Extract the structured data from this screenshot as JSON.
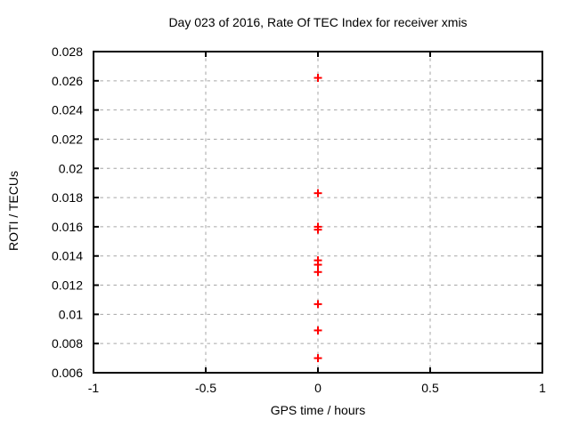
{
  "chart_data": {
    "type": "scatter",
    "title": "Day 023 of 2016, Rate Of TEC Index for receiver xmis",
    "xlabel": "GPS time / hours",
    "ylabel": "ROTI / TECUs",
    "xlim": [
      -1,
      1
    ],
    "ylim": [
      0.006,
      0.028
    ],
    "x_ticks": [
      -1,
      -0.5,
      0,
      0.5,
      1
    ],
    "x_tick_labels": [
      "-1",
      "-0.5",
      "0",
      "0.5",
      "1"
    ],
    "y_ticks": [
      0.006,
      0.008,
      0.01,
      0.012,
      0.014,
      0.016,
      0.018,
      0.02,
      0.022,
      0.024,
      0.026,
      0.028
    ],
    "y_tick_labels": [
      "0.006",
      "0.008",
      "0.01",
      "0.012",
      "0.014",
      "0.016",
      "0.018",
      "0.02",
      "0.022",
      "0.024",
      "0.026",
      "0.028"
    ],
    "grid": true,
    "legend": "none",
    "marker": "plus",
    "series": [
      {
        "name": "ROTI",
        "points": [
          {
            "x": 0,
            "y": 0.0262
          },
          {
            "x": 0,
            "y": 0.0183
          },
          {
            "x": 0,
            "y": 0.016
          },
          {
            "x": 0,
            "y": 0.0158
          },
          {
            "x": 0,
            "y": 0.0137
          },
          {
            "x": 0,
            "y": 0.0134
          },
          {
            "x": 0,
            "y": 0.0129
          },
          {
            "x": 0,
            "y": 0.0107
          },
          {
            "x": 0,
            "y": 0.0089
          },
          {
            "x": 0,
            "y": 0.007
          }
        ]
      }
    ],
    "colors": {
      "marker": "#ff0000",
      "grid": "#a6a6a6",
      "border": "#000000",
      "text": "#000000",
      "background": "#ffffff"
    }
  }
}
